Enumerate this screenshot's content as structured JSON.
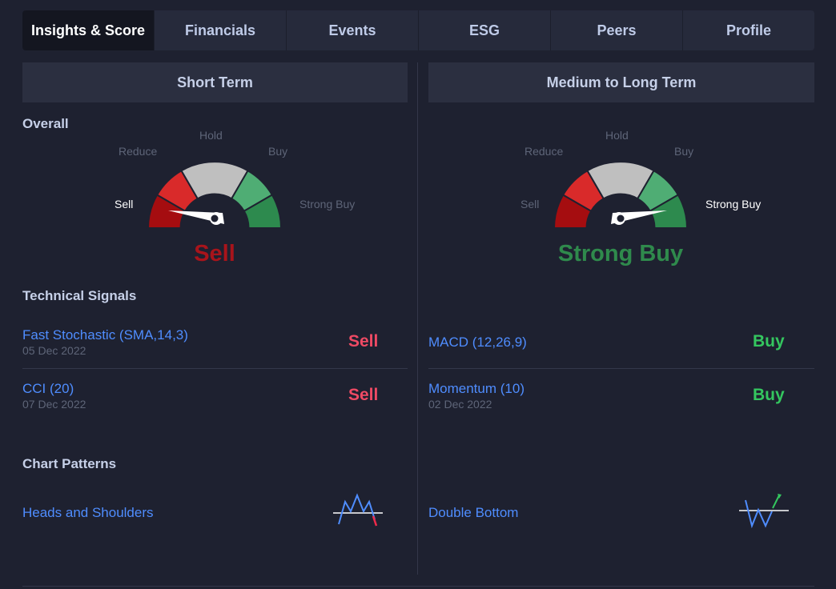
{
  "tabs": [
    {
      "label": "Insights & Score",
      "active": true
    },
    {
      "label": "Financials",
      "active": false
    },
    {
      "label": "Events",
      "active": false
    },
    {
      "label": "ESG",
      "active": false
    },
    {
      "label": "Peers",
      "active": false
    },
    {
      "label": "Profile",
      "active": false
    }
  ],
  "short_term": {
    "header": "Short Term",
    "overall_title": "Overall",
    "gauge": {
      "labels": {
        "sell": "Sell",
        "reduce": "Reduce",
        "hold": "Hold",
        "buy": "Buy",
        "strong_buy": "Strong Buy"
      },
      "active": "Sell",
      "verdict": "Sell",
      "verdict_color": "#a8141b"
    },
    "technical_title": "Technical Signals",
    "signals": [
      {
        "name": "Fast Stochastic (SMA,14,3)",
        "date": "05 Dec 2022",
        "value": "Sell"
      },
      {
        "name": "CCI (20)",
        "date": "07 Dec 2022",
        "value": "Sell"
      }
    ],
    "patterns_title": "Chart Patterns",
    "pattern": {
      "name": "Heads and Shoulders",
      "icon": "head-and-shoulders-icon"
    }
  },
  "long_term": {
    "header": "Medium to Long Term",
    "gauge": {
      "labels": {
        "sell": "Sell",
        "reduce": "Reduce",
        "hold": "Hold",
        "buy": "Buy",
        "strong_buy": "Strong Buy"
      },
      "active": "Strong Buy",
      "verdict": "Strong Buy",
      "verdict_color": "#2f8a4c"
    },
    "signals": [
      {
        "name": "MACD (12,26,9)",
        "date": "",
        "value": "Buy"
      },
      {
        "name": "Momentum (10)",
        "date": "02 Dec 2022",
        "value": "Buy"
      }
    ],
    "pattern": {
      "name": "Double Bottom",
      "icon": "double-bottom-icon"
    }
  },
  "colors": {
    "gauge_sell": "#a50d10",
    "gauge_reduce": "#d92a2a",
    "gauge_hold": "#bfbfbf",
    "gauge_buy": "#4fad74",
    "gauge_strong_buy": "#2d8a4e",
    "sell_text": "#ef4a64",
    "buy_text": "#34c65f",
    "link": "#4f8dff"
  }
}
